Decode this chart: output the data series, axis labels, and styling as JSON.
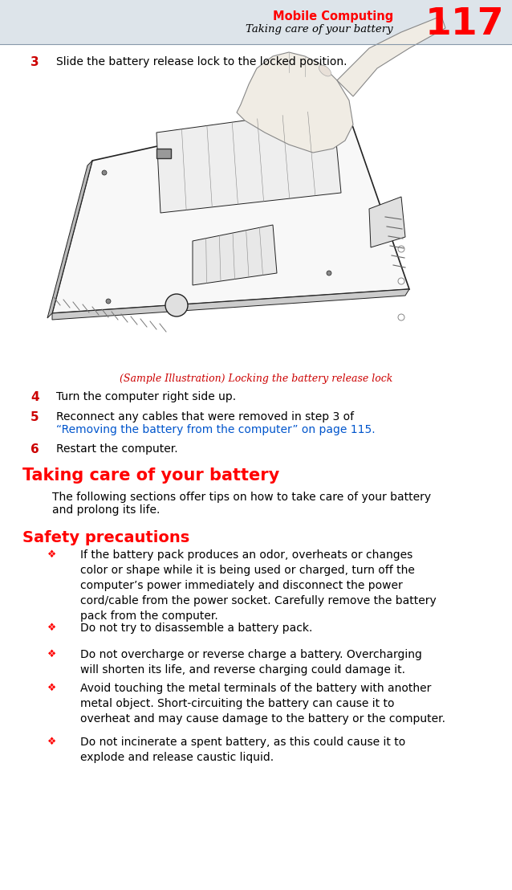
{
  "page_number": "117",
  "header_title": "Mobile Computing",
  "header_subtitle": "Taking care of your battery",
  "header_color": "#ff0000",
  "header_subtitle_color": "#000000",
  "line_color": "#8899aa",
  "body_bg": "#ffffff",
  "step3_number": "3",
  "step3_text": "Slide the battery release lock to the locked position.",
  "caption_text": "(Sample Illustration) Locking the battery release lock",
  "caption_color": "#cc0000",
  "step4_number": "4",
  "step4_text": "Turn the computer right side up.",
  "step5_number": "5",
  "step5_text_plain": "Reconnect any cables that were removed in step 3 of",
  "step5_text_link": "“Removing the battery from the computer” on page 115.",
  "step5_link_color": "#0055cc",
  "step6_number": "6",
  "step6_text": "Restart the computer.",
  "section_title": "Taking care of your battery",
  "section_title_color": "#ff0000",
  "section_body_1": "The following sections offer tips on how to take care of your battery",
  "section_body_2": "and prolong its life.",
  "subsection_title": "Safety precautions",
  "subsection_title_color": "#ff0000",
  "bullet_color": "#ff0000",
  "bullets": [
    "If the battery pack produces an odor, overheats or changes\ncolor or shape while it is being used or charged, turn off the\ncomputer’s power immediately and disconnect the power\ncord/cable from the power socket. Carefully remove the battery\npack from the computer.",
    "Do not try to disassemble a battery pack.",
    "Do not overcharge or reverse charge a battery. Overcharging\nwill shorten its life, and reverse charging could damage it.",
    "Avoid touching the metal terminals of the battery with another\nmetal object. Short-circuiting the battery can cause it to\noverheat and may cause damage to the battery or the computer.",
    "Do not incinerate a spent battery, as this could cause it to\nexplode and release caustic liquid."
  ],
  "number_color": "#cc0000",
  "text_color": "#000000",
  "bg_header_color": "#dde4ea"
}
